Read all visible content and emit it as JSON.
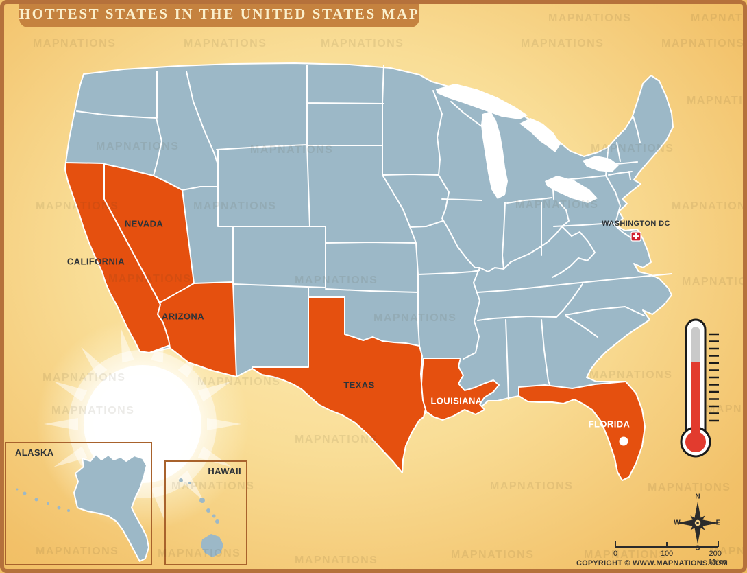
{
  "title": "HOTTEST STATES IN THE UNITED STATES MAP",
  "watermark": "MAPNATIONS",
  "map": {
    "hot_states": [
      {
        "label": "CALIFORNIA"
      },
      {
        "label": "NEVADA"
      },
      {
        "label": "ARIZONA"
      },
      {
        "label": "TEXAS"
      },
      {
        "label": "LOUISIANA"
      },
      {
        "label": "FLORIDA"
      }
    ],
    "capital": "WASHINGTON DC",
    "alaska": "ALASKA",
    "hawaii": "HAWAII"
  },
  "compass": {
    "n": "N",
    "e": "E",
    "s": "S",
    "w": "W"
  },
  "scale": {
    "t0": "0",
    "t1": "100",
    "t2": "200 Miles"
  },
  "copyright": "COPYRIGHT © WWW.MAPNATIONS.COM",
  "colors": {
    "hot_state": "#E5500F",
    "state": "#9CB8C7",
    "lake": "#FFFFFF",
    "frame": "#B5713B",
    "banner": "#C5823F",
    "banner_text": "#FBF0CC",
    "label_dark": "#2E3338",
    "bg_center": "#FDEDB8",
    "bg_edge": "#F2C169",
    "thermometer_red": "#E23B2E",
    "flag_red": "#CF1F2F"
  }
}
